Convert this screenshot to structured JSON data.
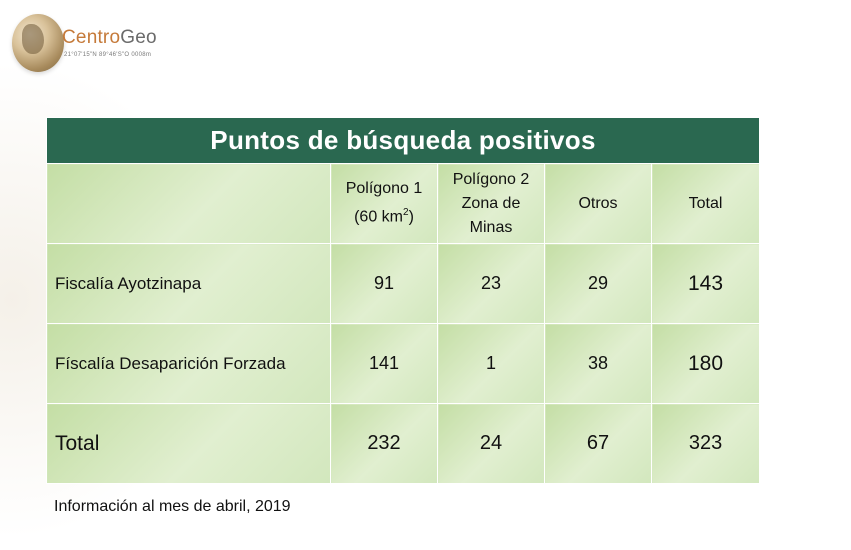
{
  "logo": {
    "brand_prefix": "Centro",
    "brand_suffix": "Geo",
    "coordinates": "21°07'15\"N 89°46'S\"O 0008m",
    "icon": "globe-icon"
  },
  "table": {
    "title": "Puntos de búsqueda positivos",
    "columns": [
      {
        "lines": [
          "Polígono 1",
          "(60 km2)"
        ]
      },
      {
        "lines": [
          "Polígono 2",
          "Zona de",
          "Minas"
        ]
      },
      {
        "lines": [
          "Otros"
        ]
      },
      {
        "lines": [
          "Total"
        ]
      }
    ],
    "header_area_line1": "Polígono 1",
    "header_area_line2": "(60 km",
    "header_area_sup": "2",
    "header_area_close": ")",
    "rows": [
      {
        "label": "Fiscalía Ayotzinapa",
        "values": [
          "91",
          "23",
          "29",
          "143"
        ]
      },
      {
        "label": "Físcalía Desaparición Forzada",
        "values": [
          "141",
          "1",
          "38",
          "180"
        ]
      },
      {
        "label": "Total",
        "values": [
          "232",
          "24",
          "67",
          "323"
        ]
      }
    ]
  },
  "footnote": "Información al mes de abril, 2019",
  "colors": {
    "title_bg": "#2a6850",
    "cell_green": "#cfe5b6",
    "brand_orange": "#c57a3a"
  }
}
